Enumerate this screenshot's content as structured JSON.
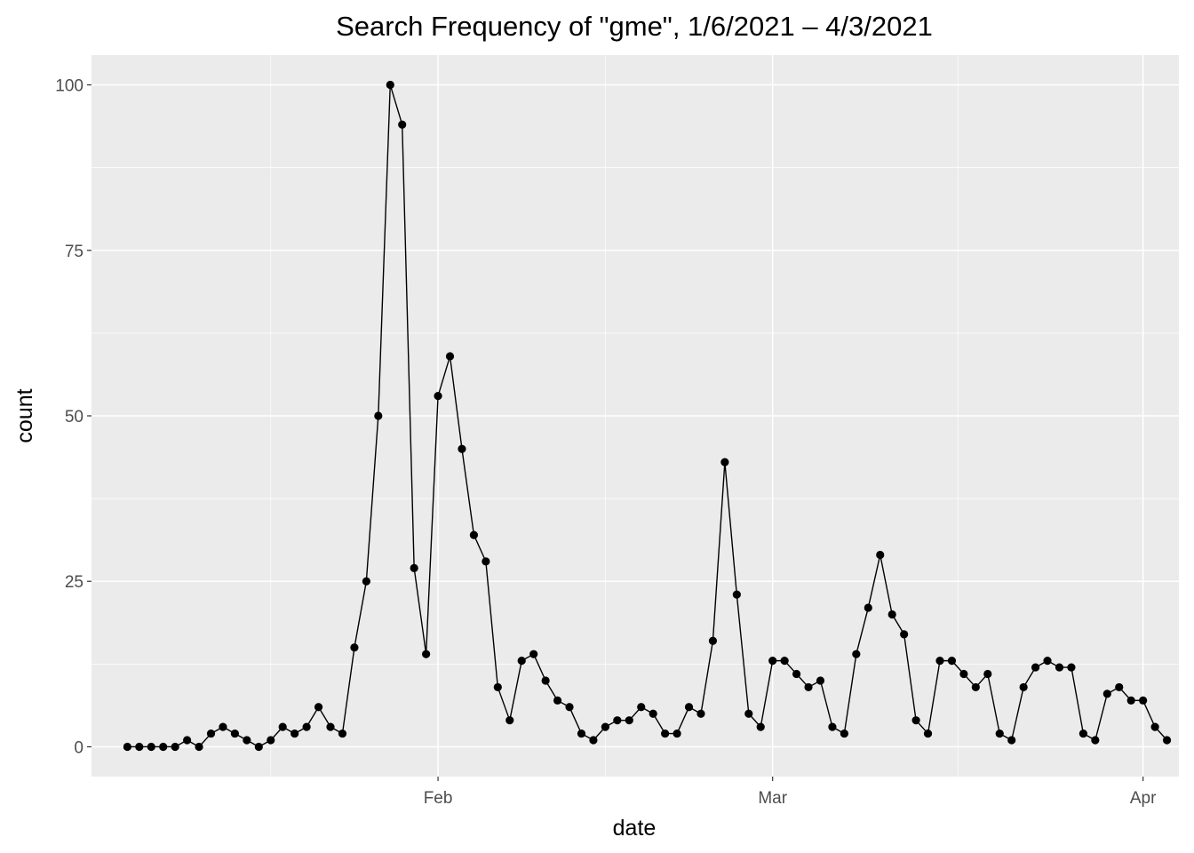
{
  "chart_data": {
    "type": "line",
    "title": "Search Frequency of \"gme\", 1/6/2021 – 4/3/2021",
    "xlabel": "date",
    "ylabel": "count",
    "ylim": [
      -4.5,
      104.5
    ],
    "xlim": [
      "2021-01-03",
      "2021-04-04"
    ],
    "y_ticks": [
      0,
      25,
      50,
      75,
      100
    ],
    "x_ticks": [
      {
        "date": "2021-02-01",
        "label": "Feb"
      },
      {
        "date": "2021-03-01",
        "label": "Mar"
      },
      {
        "date": "2021-04-01",
        "label": "Apr"
      }
    ],
    "grid": true,
    "legend": "none",
    "colors": {
      "panel": "#ebebeb",
      "grid": "#ffffff",
      "line": "#000000",
      "point": "#000000"
    },
    "series": [
      {
        "start_date": "2021-01-06",
        "x": [
          "2021-01-06",
          "2021-01-07",
          "2021-01-08",
          "2021-01-09",
          "2021-01-10",
          "2021-01-11",
          "2021-01-12",
          "2021-01-13",
          "2021-01-14",
          "2021-01-15",
          "2021-01-16",
          "2021-01-17",
          "2021-01-18",
          "2021-01-19",
          "2021-01-20",
          "2021-01-21",
          "2021-01-22",
          "2021-01-23",
          "2021-01-24",
          "2021-01-25",
          "2021-01-26",
          "2021-01-27",
          "2021-01-28",
          "2021-01-29",
          "2021-01-30",
          "2021-01-31",
          "2021-02-01",
          "2021-02-02",
          "2021-02-03",
          "2021-02-04",
          "2021-02-05",
          "2021-02-06",
          "2021-02-07",
          "2021-02-08",
          "2021-02-09",
          "2021-02-10",
          "2021-02-11",
          "2021-02-12",
          "2021-02-13",
          "2021-02-14",
          "2021-02-15",
          "2021-02-16",
          "2021-02-17",
          "2021-02-18",
          "2021-02-19",
          "2021-02-20",
          "2021-02-21",
          "2021-02-22",
          "2021-02-23",
          "2021-02-24",
          "2021-02-25",
          "2021-02-26",
          "2021-02-27",
          "2021-02-28",
          "2021-03-01",
          "2021-03-02",
          "2021-03-03",
          "2021-03-04",
          "2021-03-05",
          "2021-03-06",
          "2021-03-07",
          "2021-03-08",
          "2021-03-09",
          "2021-03-10",
          "2021-03-11",
          "2021-03-12",
          "2021-03-13",
          "2021-03-14",
          "2021-03-15",
          "2021-03-16",
          "2021-03-17",
          "2021-03-18",
          "2021-03-19",
          "2021-03-20",
          "2021-03-21",
          "2021-03-22",
          "2021-03-23",
          "2021-03-24",
          "2021-03-25",
          "2021-03-26",
          "2021-03-27",
          "2021-03-28",
          "2021-03-29",
          "2021-03-30",
          "2021-03-31",
          "2021-04-01",
          "2021-04-02",
          "2021-04-03"
        ],
        "values": [
          0,
          0,
          0,
          0,
          0,
          1,
          0,
          2,
          3,
          2,
          1,
          0,
          1,
          3,
          2,
          3,
          6,
          3,
          2,
          15,
          25,
          50,
          100,
          94,
          27,
          14,
          53,
          59,
          45,
          32,
          28,
          9,
          4,
          13,
          14,
          10,
          7,
          6,
          2,
          1,
          3,
          4,
          4,
          6,
          5,
          2,
          2,
          6,
          5,
          16,
          43,
          23,
          5,
          3,
          13,
          13,
          11,
          9,
          10,
          3,
          2,
          14,
          21,
          29,
          20,
          17,
          4,
          2,
          13,
          13,
          11,
          9,
          11,
          2,
          1,
          9,
          12,
          13,
          12,
          12,
          2,
          1,
          8,
          9,
          7,
          7,
          3,
          1
        ]
      }
    ]
  }
}
